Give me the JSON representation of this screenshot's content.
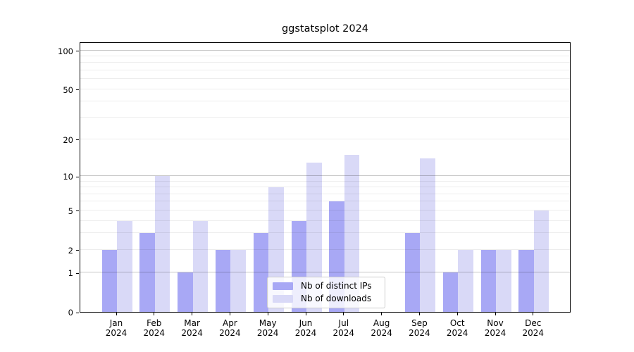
{
  "chart_data": {
    "type": "bar",
    "title": "ggstatsplot 2024",
    "x_months": [
      "Jan",
      "Feb",
      "Mar",
      "Apr",
      "May",
      "Jun",
      "Jul",
      "Aug",
      "Sep",
      "Oct",
      "Nov",
      "Dec"
    ],
    "x_year": "2024",
    "series": [
      {
        "name": "Nb of distinct IPs",
        "color": "#a8a8f5",
        "values": [
          2,
          3,
          1,
          2,
          3,
          4,
          6,
          0,
          3,
          1,
          2,
          2
        ]
      },
      {
        "name": "Nb of downloads",
        "color": "#d9d9f7",
        "values": [
          4,
          10,
          4,
          2,
          8,
          13,
          15,
          0,
          14,
          2,
          2,
          5
        ]
      }
    ],
    "yscale": "log1p",
    "ylim": [
      0,
      117
    ],
    "y_tick_values": [
      0,
      1,
      2,
      5,
      10,
      20,
      50,
      100
    ],
    "y_major_gridlines": [
      1,
      10,
      100
    ],
    "y_minor_gridlines": [
      2,
      3,
      4,
      5,
      6,
      7,
      8,
      9,
      20,
      30,
      40,
      50,
      60,
      70,
      80,
      90
    ],
    "grid": "on",
    "legend_position": "lower center inside plot",
    "xlabel": "",
    "ylabel": ""
  }
}
